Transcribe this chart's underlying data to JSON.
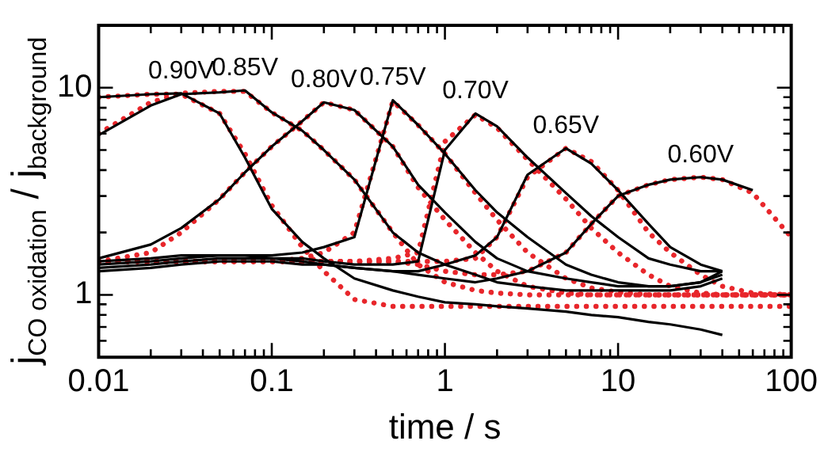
{
  "chart_data": {
    "type": "line",
    "xlabel": "time / s",
    "ylabel": "j$_{CO oxidation}$ / j$_{background}$",
    "log": "xy",
    "legend": "top",
    "xlim": [
      0.01,
      100
    ],
    "xticks": [
      0.01,
      {
        "value": 0.02,
        "label": null
      },
      {
        "value": 0.03,
        "label": null
      },
      {
        "value": 0.04,
        "label": null
      },
      {
        "value": 0.05,
        "label": null
      },
      {
        "value": 0.06,
        "label": null
      },
      {
        "value": 0.07,
        "label": null
      },
      {
        "value": 0.08,
        "label": null
      },
      {
        "value": 0.09,
        "label": null
      },
      0.1,
      {
        "value": 0.2,
        "label": null
      },
      {
        "value": 0.3,
        "label": null
      },
      {
        "value": 0.4,
        "label": null
      },
      {
        "value": 0.5,
        "label": null
      },
      {
        "value": 0.6,
        "label": null
      },
      {
        "value": 0.7,
        "label": null
      },
      {
        "value": 0.8,
        "label": null
      },
      {
        "value": 0.9,
        "label": null
      },
      1,
      {
        "value": 2,
        "label": null
      },
      {
        "value": 3,
        "label": null
      },
      {
        "value": 4,
        "label": null
      },
      {
        "value": 5,
        "label": null
      },
      {
        "value": 6,
        "label": null
      },
      {
        "value": 7,
        "label": null
      },
      {
        "value": 8,
        "label": null
      },
      {
        "value": 9,
        "label": null
      },
      10,
      {
        "value": 20,
        "label": null
      },
      {
        "value": 30,
        "label": null
      },
      {
        "value": 40,
        "label": null
      },
      {
        "value": 50,
        "label": null
      },
      {
        "value": 60,
        "label": null
      },
      {
        "value": 70,
        "label": null
      },
      {
        "value": 80,
        "label": null
      },
      {
        "value": 90,
        "label": null
      },
      100
    ],
    "ylim": [
      0.5,
      20
    ],
    "yticks": [
      {
        "value": 0.5,
        "label": null
      },
      {
        "value": 0.6,
        "label": null
      },
      {
        "value": 0.7,
        "label": null
      },
      {
        "value": 0.8,
        "label": null
      },
      {
        "value": 0.9,
        "label": null
      },
      1,
      {
        "value": 2,
        "label": null
      },
      {
        "value": 3,
        "label": null
      },
      {
        "value": 4,
        "label": null
      },
      {
        "value": 5,
        "label": null
      },
      {
        "value": 6,
        "label": null
      },
      {
        "value": 7,
        "label": null
      },
      {
        "value": 8,
        "label": null
      },
      {
        "value": 9,
        "label": null
      },
      10,
      {
        "value": 20,
        "label": null
      }
    ],
    "x": [
      0.01,
      0.02,
      0.03,
      0.05,
      0.07,
      0.1,
      0.15,
      0.2,
      0.3,
      0.5,
      0.7,
      1,
      1.5,
      2,
      3,
      5,
      7,
      10,
      15,
      20,
      30,
      40,
      60,
      100
    ],
    "series": [
      {
        "name": "0.90V",
        "color": "#000000",
        "line_style": "solid",
        "values": [
          9.0,
          9.3,
          9.4,
          7.5,
          4.6,
          2.6,
          1.8,
          1.5,
          1.2,
          1.05,
          0.98,
          0.92,
          0.9,
          0.88,
          0.86,
          0.83,
          0.8,
          0.78,
          0.74,
          0.72,
          0.68,
          0.64,
          null,
          null
        ]
      },
      {
        "name": "0.85V",
        "color": "#000000",
        "line_style": "solid",
        "values": [
          5.9,
          8.2,
          9.3,
          9.5,
          9.7,
          7.6,
          6.2,
          5.0,
          3.6,
          2.0,
          1.6,
          1.4,
          1.25,
          1.15,
          1.1,
          1.05,
          1.05,
          1.05,
          1.05,
          1.05,
          1.1,
          1.2,
          null,
          null
        ]
      },
      {
        "name": "0.80V",
        "color": "#000000",
        "line_style": "solid",
        "values": [
          1.5,
          1.75,
          2.1,
          2.9,
          3.9,
          5.2,
          6.9,
          8.5,
          7.8,
          5.2,
          3.4,
          2.5,
          1.8,
          1.5,
          1.3,
          1.2,
          1.15,
          1.1,
          1.1,
          1.1,
          1.15,
          1.25,
          null,
          null
        ]
      },
      {
        "name": "0.75V",
        "color": "#000000",
        "line_style": "solid",
        "values": [
          1.45,
          1.5,
          1.55,
          1.55,
          1.55,
          1.55,
          1.6,
          1.7,
          1.9,
          8.7,
          6.6,
          4.8,
          3.2,
          2.5,
          1.9,
          1.4,
          1.25,
          1.15,
          1.1,
          1.1,
          1.15,
          1.3,
          null,
          null
        ]
      },
      {
        "name": "0.70V",
        "color": "#000000",
        "line_style": "solid",
        "values": [
          1.4,
          1.45,
          1.5,
          1.55,
          1.55,
          1.5,
          1.5,
          1.45,
          1.4,
          1.4,
          1.45,
          5.0,
          7.5,
          6.5,
          4.6,
          3.1,
          2.4,
          1.9,
          1.5,
          1.4,
          1.3,
          1.3,
          null,
          null
        ]
      },
      {
        "name": "0.65V",
        "color": "#000000",
        "line_style": "solid",
        "values": [
          1.35,
          1.4,
          1.45,
          1.5,
          1.5,
          1.5,
          1.45,
          1.4,
          1.35,
          1.3,
          1.3,
          1.4,
          1.55,
          1.9,
          3.8,
          5.1,
          4.3,
          3.2,
          2.2,
          1.7,
          1.4,
          1.3,
          null,
          null
        ]
      },
      {
        "name": "0.60V",
        "color": "#000000",
        "line_style": "solid",
        "values": [
          1.3,
          1.35,
          1.4,
          1.45,
          1.45,
          1.45,
          1.4,
          1.4,
          1.35,
          1.3,
          1.25,
          1.2,
          1.15,
          1.2,
          1.3,
          1.6,
          2.2,
          3.0,
          3.4,
          3.6,
          3.7,
          3.6,
          3.2,
          null
        ]
      },
      {
        "color": "#e8262b",
        "line_style": "dotted",
        "values": [
          9.0,
          9.3,
          9.3,
          7.5,
          4.8,
          2.7,
          1.7,
          1.3,
          0.95,
          0.88,
          0.88,
          0.88,
          0.88,
          0.88,
          0.88,
          0.88,
          0.88,
          0.88,
          0.88,
          0.88,
          0.88,
          0.88,
          0.88,
          0.88
        ]
      },
      {
        "color": "#e8262b",
        "line_style": "dotted",
        "values": [
          6.0,
          8.5,
          9.4,
          9.6,
          9.6,
          7.6,
          6.2,
          5.0,
          3.6,
          2.0,
          1.4,
          1.15,
          1.05,
          1.02,
          1.0,
          1.0,
          1.0,
          1.0,
          1.0,
          1.0,
          1.0,
          1.0,
          1.0,
          1.0
        ]
      },
      {
        "color": "#e8262b",
        "line_style": "dotted",
        "values": [
          1.45,
          1.6,
          2.0,
          2.9,
          3.9,
          5.2,
          6.9,
          8.5,
          7.8,
          5.2,
          3.3,
          2.3,
          1.6,
          1.3,
          1.1,
          1.02,
          1.0,
          1.0,
          1.0,
          1.0,
          1.0,
          1.0,
          1.0,
          1.0
        ]
      },
      {
        "color": "#e8262b",
        "line_style": "dotted",
        "values": [
          1.45,
          1.45,
          1.45,
          1.45,
          1.45,
          1.45,
          1.5,
          1.6,
          2.0,
          8.6,
          6.6,
          4.8,
          3.1,
          2.3,
          1.6,
          1.2,
          1.08,
          1.03,
          1.0,
          1.0,
          1.0,
          1.0,
          1.0,
          1.0
        ]
      },
      {
        "color": "#e8262b",
        "line_style": "dotted",
        "values": [
          1.45,
          1.45,
          1.45,
          1.45,
          1.45,
          1.45,
          1.45,
          1.45,
          1.45,
          1.5,
          1.6,
          5.5,
          7.4,
          6.4,
          4.5,
          2.9,
          2.1,
          1.6,
          1.25,
          1.1,
          1.02,
          1.0,
          1.0,
          1.0
        ]
      },
      {
        "color": "#e8262b",
        "line_style": "dotted",
        "values": [
          1.45,
          1.45,
          1.45,
          1.45,
          1.45,
          1.45,
          1.45,
          1.45,
          1.45,
          1.45,
          1.45,
          1.45,
          1.5,
          1.9,
          3.7,
          5.1,
          4.4,
          3.2,
          2.0,
          1.6,
          1.25,
          1.1,
          1.02,
          1.0
        ]
      },
      {
        "color": "#e8262b",
        "line_style": "dotted",
        "values": [
          1.45,
          1.45,
          1.45,
          1.45,
          1.45,
          1.45,
          1.45,
          1.45,
          1.45,
          1.45,
          1.4,
          1.3,
          1.25,
          1.25,
          1.3,
          1.6,
          2.2,
          3.0,
          3.4,
          3.6,
          3.7,
          3.6,
          3.1,
          1.9
        ]
      }
    ]
  }
}
